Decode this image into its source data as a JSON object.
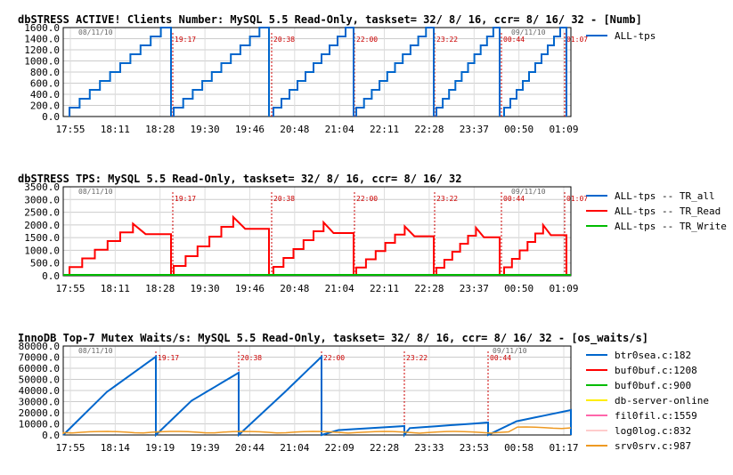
{
  "chart_data": [
    {
      "type": "line",
      "title": "dbSTRESS ACTIVE! Clients Number: MySQL 5.5 Read-Only, taskset= 32/ 8/ 16, ccr= 8/ 16/ 32 - [Numb]",
      "ylim": [
        0,
        1600
      ],
      "yticks": [
        "0.0",
        "200.0",
        "400.0",
        "600.0",
        "800.0",
        "1000.0",
        "1200.0",
        "1400.0",
        "1600.0"
      ],
      "xticks": [
        "17:55",
        "18:11",
        "18:28",
        "19:30",
        "19:46",
        "20:48",
        "21:04",
        "22:11",
        "22:28",
        "23:37",
        "00:50",
        "01:09"
      ],
      "dates": [
        "08/11/10",
        "09/11/10"
      ],
      "markers": [
        "19:17",
        "20:38",
        "22:00",
        "23:22",
        "00:44",
        "01:07"
      ],
      "legend": [
        "ALL-tps"
      ],
      "colors": [
        "#0066cc"
      ]
    },
    {
      "type": "line",
      "title": "dbSTRESS TPS: MySQL 5.5 Read-Only, taskset= 32/ 8/ 16, ccr= 8/ 16/ 32",
      "ylim": [
        0,
        3500
      ],
      "yticks": [
        "0.0",
        "500.0",
        "1000.0",
        "1500.0",
        "2000.0",
        "2500.0",
        "3000.0",
        "3500.0"
      ],
      "xticks": [
        "17:55",
        "18:11",
        "18:28",
        "19:30",
        "19:46",
        "20:48",
        "21:04",
        "22:11",
        "22:28",
        "23:37",
        "00:50",
        "01:09"
      ],
      "dates": [
        "08/11/10",
        "09/11/10"
      ],
      "markers": [
        "19:17",
        "20:38",
        "22:00",
        "23:22",
        "00:44",
        "01:07"
      ],
      "legend": [
        "ALL-tps -- TR_all",
        "ALL-tps -- TR_Read",
        "ALL-tps -- TR_Write"
      ],
      "colors": [
        "#0066cc",
        "#ff0000",
        "#00bb00"
      ]
    },
    {
      "type": "line",
      "title": "InnoDB Top-7 Mutex Waits/s: MySQL 5.5 Read-Only, taskset= 32/ 8/ 16, ccr= 8/ 16/ 32 - [os_waits/s]",
      "ylim": [
        0,
        80000
      ],
      "yticks": [
        "0.0",
        "10000.0",
        "20000.0",
        "30000.0",
        "40000.0",
        "50000.0",
        "60000.0",
        "70000.0",
        "80000.0"
      ],
      "xticks": [
        "17:55",
        "18:14",
        "19:19",
        "19:39",
        "20:44",
        "21:04",
        "22:09",
        "22:28",
        "23:33",
        "23:53",
        "00:58",
        "01:17"
      ],
      "dates": [
        "08/11/10",
        "09/11/10"
      ],
      "markers": [
        "19:17",
        "20:38",
        "22:00",
        "23:22",
        "00:44"
      ],
      "legend": [
        "btr0sea.c:182",
        "buf0buf.c:1208",
        "buf0buf.c:900",
        "db-server-online",
        "fil0fil.c:1559",
        "log0log.c:832",
        "srv0srv.c:987"
      ],
      "colors": [
        "#0066cc",
        "#ff0000",
        "#00bb00",
        "#ffee00",
        "#ff66aa",
        "#ffcccc",
        "#ee9922"
      ]
    }
  ]
}
